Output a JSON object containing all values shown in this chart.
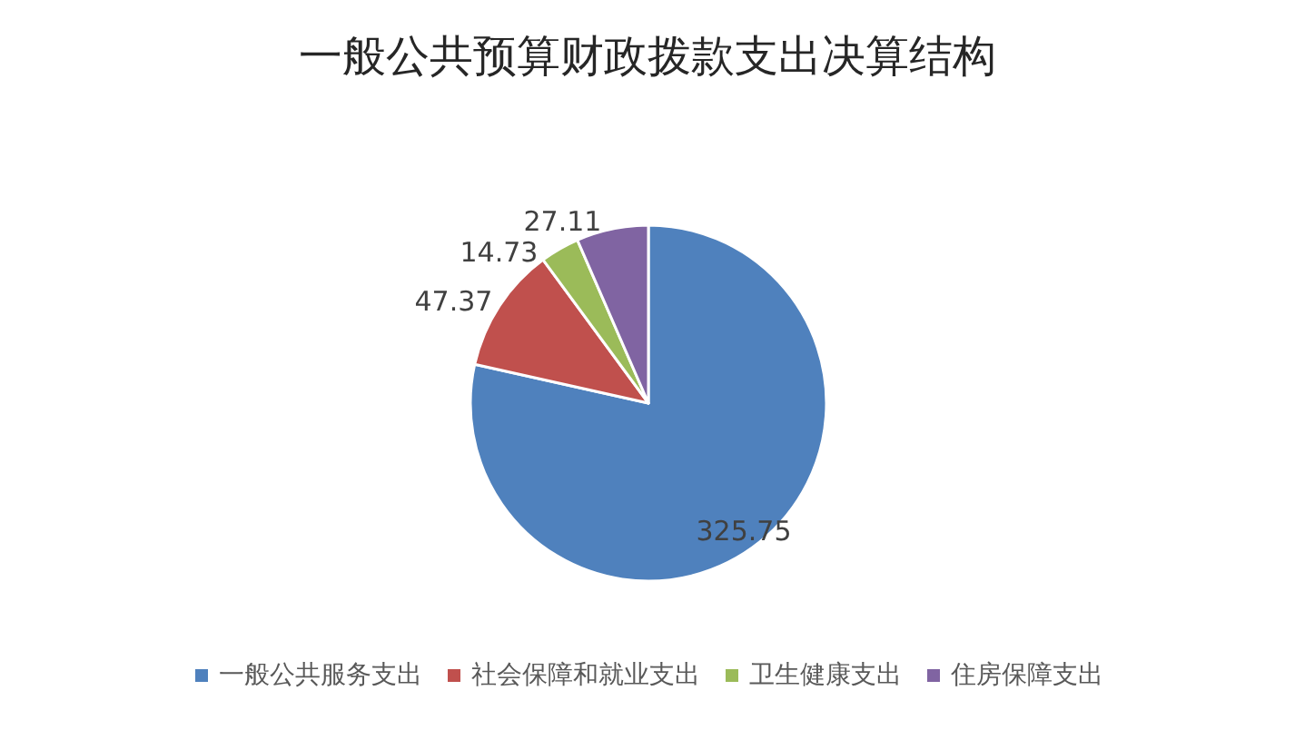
{
  "chart_data": {
    "type": "pie",
    "title": "一般公共预算财政拨款支出决算结构",
    "categories": [
      "一般公共服务支出",
      "社会保障和就业支出",
      "卫生健康支出",
      "住房保障支出"
    ],
    "values": [
      325.75,
      47.37,
      14.73,
      27.11
    ],
    "colors": [
      "#4f81bd",
      "#c0504d",
      "#9bbb59",
      "#8064a2"
    ],
    "data_labels": true,
    "legend": "bottom"
  }
}
